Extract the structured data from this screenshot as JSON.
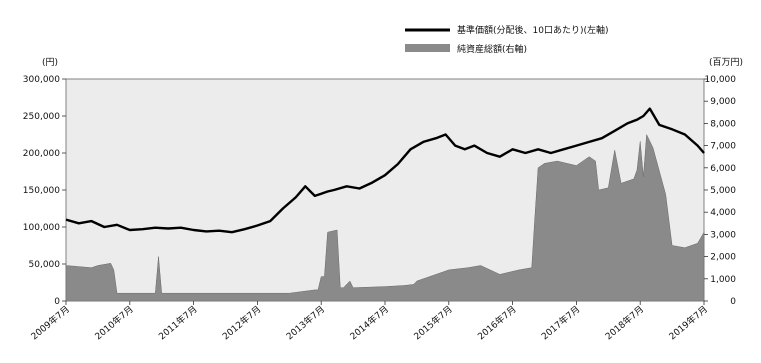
{
  "chart_data": {
    "type": "line",
    "title": "",
    "y_unit_left": "(円)",
    "y_unit_right": "(百万円)",
    "ylim_left": [
      0,
      300000
    ],
    "ylim_right": [
      0,
      10000
    ],
    "yticks_left": [
      "300,000",
      "250,000",
      "200,000",
      "150,000",
      "100,000",
      "50,000",
      "0"
    ],
    "yticks_right": [
      "10,000",
      "9,000",
      "8,000",
      "7,000",
      "6,000",
      "5,000",
      "4,000",
      "3,000",
      "2,000",
      "1,000",
      "0"
    ],
    "xticks": [
      "2009年7月",
      "2010年7月",
      "2011年7月",
      "2012年7月",
      "2013年7月",
      "2014年7月",
      "2015年7月",
      "2016年7月",
      "2017年7月",
      "2018年7月",
      "2019年7月"
    ],
    "x_range": [
      2009.5,
      2019.5
    ],
    "grid": false,
    "legend_position": "top-right",
    "series": [
      {
        "name": "基準価額(分配後、10口あたり)(左軸)",
        "axis": "left",
        "style": "line",
        "color": "#000000",
        "x": [
          2009.5,
          2009.7,
          2009.9,
          2010.1,
          2010.3,
          2010.5,
          2010.7,
          2010.9,
          2011.1,
          2011.3,
          2011.5,
          2011.7,
          2011.9,
          2012.1,
          2012.3,
          2012.5,
          2012.7,
          2012.9,
          2013.1,
          2013.25,
          2013.4,
          2013.5,
          2013.6,
          2013.7,
          2013.9,
          2014.1,
          2014.3,
          2014.5,
          2014.7,
          2014.9,
          2015.1,
          2015.3,
          2015.45,
          2015.6,
          2015.75,
          2015.9,
          2016.1,
          2016.3,
          2016.5,
          2016.7,
          2016.9,
          2017.1,
          2017.3,
          2017.5,
          2017.7,
          2017.9,
          2018.1,
          2018.3,
          2018.45,
          2018.55,
          2018.65,
          2018.8,
          2019.0,
          2019.2,
          2019.4,
          2019.5
        ],
        "values": [
          110000,
          105000,
          108000,
          100000,
          103000,
          96000,
          97000,
          99000,
          98000,
          99000,
          96000,
          94000,
          95000,
          93000,
          97000,
          102000,
          108000,
          125000,
          140000,
          155000,
          142000,
          145000,
          148000,
          150000,
          155000,
          152000,
          160000,
          170000,
          185000,
          205000,
          215000,
          220000,
          225000,
          210000,
          205000,
          210000,
          200000,
          195000,
          205000,
          200000,
          205000,
          200000,
          205000,
          210000,
          215000,
          220000,
          230000,
          240000,
          245000,
          250000,
          260000,
          238000,
          232000,
          225000,
          210000,
          200000
        ]
      },
      {
        "name": "純資産総額(右軸)",
        "axis": "right",
        "style": "area",
        "color": "#8a8a8a",
        "x": [
          2009.5,
          2009.9,
          2010.0,
          2010.2,
          2010.25,
          2010.3,
          2010.9,
          2010.95,
          2011.0,
          2011.5,
          2012.0,
          2012.5,
          2013.0,
          2013.4,
          2013.45,
          2013.5,
          2013.55,
          2013.6,
          2013.75,
          2013.8,
          2013.85,
          2013.95,
          2014.0,
          2014.5,
          2014.8,
          2014.95,
          2015.0,
          2015.3,
          2015.5,
          2015.8,
          2016.0,
          2016.3,
          2016.6,
          2016.8,
          2016.85,
          2016.9,
          2017.0,
          2017.2,
          2017.5,
          2017.7,
          2017.8,
          2017.85,
          2018.0,
          2018.1,
          2018.2,
          2018.4,
          2018.45,
          2018.5,
          2018.55,
          2018.6,
          2018.7,
          2018.9,
          2019.0,
          2019.2,
          2019.4,
          2019.5
        ],
        "values": [
          1600,
          1500,
          1600,
          1700,
          1400,
          350,
          350,
          2000,
          350,
          350,
          350,
          350,
          350,
          500,
          500,
          1100,
          1100,
          3100,
          3200,
          600,
          600,
          900,
          600,
          650,
          700,
          750,
          900,
          1200,
          1400,
          1500,
          1600,
          1200,
          1400,
          1500,
          3800,
          6000,
          6200,
          6300,
          6100,
          6500,
          6300,
          5000,
          5100,
          6800,
          5300,
          5500,
          5900,
          7200,
          5600,
          7500,
          6900,
          4800,
          2500,
          2400,
          2600,
          3100
        ]
      }
    ]
  }
}
